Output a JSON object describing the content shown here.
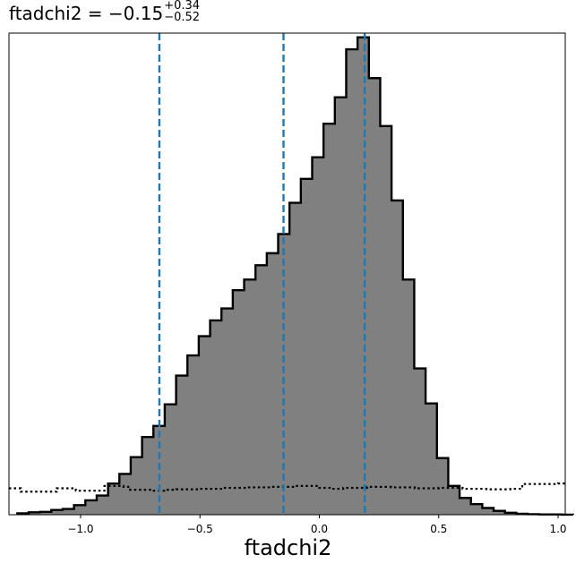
{
  "chart_data": {
    "type": "histogram",
    "title": {
      "param": "ftadchi2",
      "value": "−0.15",
      "err_plus": "+0.34",
      "err_minus": "−0.52"
    },
    "xlabel": "ftadchi2",
    "xlim": [
      -1.3,
      1.03
    ],
    "ylim": [
      0,
      1
    ],
    "y_ticks_shown": false,
    "x_ticks": [
      {
        "value": -1.0,
        "label": "−1.0"
      },
      {
        "value": -0.5,
        "label": "−0.5"
      },
      {
        "value": 0.0,
        "label": "0.0"
      },
      {
        "value": 0.5,
        "label": "0.5"
      },
      {
        "value": 1.0,
        "label": "1.0"
      }
    ],
    "colors": {
      "fill": "#808080",
      "edge": "#000000",
      "quantile": "#1f77b4",
      "prior": "#000000"
    },
    "quantile_lines": [
      -0.67,
      -0.15,
      0.19
    ],
    "histogram": {
      "bin_start": -1.265,
      "bin_width": 0.0475,
      "values": [
        0.003,
        0.005,
        0.006,
        0.01,
        0.012,
        0.02,
        0.03,
        0.04,
        0.065,
        0.085,
        0.12,
        0.162,
        0.185,
        0.23,
        0.29,
        0.332,
        0.372,
        0.405,
        0.43,
        0.468,
        0.49,
        0.52,
        0.545,
        0.585,
        0.65,
        0.7,
        0.745,
        0.815,
        0.87,
        0.97,
        0.995,
        0.91,
        0.81,
        0.655,
        0.49,
        0.305,
        0.232,
        0.118,
        0.06,
        0.035,
        0.022,
        0.014,
        0.008,
        0.004,
        0.002,
        0.001,
        0.0005,
        0.0005,
        0.0002
      ]
    },
    "prior": {
      "x": [
        -1.3,
        -1.25,
        -1.18,
        -1.1,
        -1.02,
        -0.9,
        -0.82,
        -0.8,
        -0.7,
        -0.65,
        -0.6,
        -0.5,
        -0.4,
        -0.3,
        -0.2,
        -0.15,
        -0.1,
        -0.05,
        0.0,
        0.05,
        0.1,
        0.2,
        0.3,
        0.4,
        0.5,
        0.6,
        0.7,
        0.8,
        0.85,
        0.9,
        1.0,
        1.03
      ],
      "y": [
        0.055,
        0.048,
        0.048,
        0.055,
        0.05,
        0.06,
        0.058,
        0.052,
        0.05,
        0.052,
        0.053,
        0.054,
        0.056,
        0.057,
        0.058,
        0.058,
        0.06,
        0.06,
        0.056,
        0.054,
        0.056,
        0.058,
        0.057,
        0.055,
        0.056,
        0.054,
        0.053,
        0.054,
        0.064,
        0.064,
        0.065,
        0.065
      ]
    }
  }
}
